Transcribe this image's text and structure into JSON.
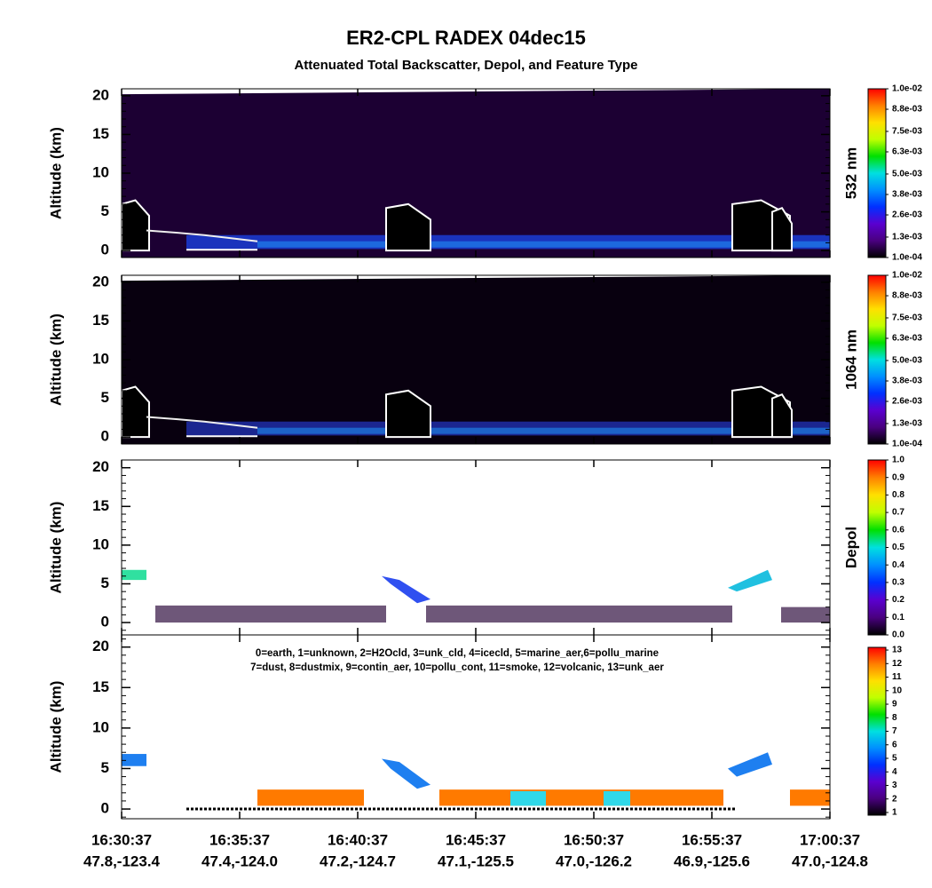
{
  "chart_data": [
    {
      "type": "heatmap",
      "title": "ER2-CPL RADEX 04dec15",
      "subtitle": "Attenuated Total Backscatter, Depol, and Feature Type",
      "y_label": "Altitude (km)",
      "ylim": [
        -0.9,
        20.9
      ],
      "yticks": [
        0,
        5,
        10,
        15,
        20
      ],
      "background": "#1c0033",
      "colorbar": {
        "label": "532 nm",
        "clim": [
          0.0001,
          0.01
        ],
        "ticks": [
          {
            "value": 0.0001,
            "label": "1.0e-04"
          },
          {
            "value": 0.0013,
            "label": "1.3e-03"
          },
          {
            "value": 0.0026,
            "label": "2.6e-03"
          },
          {
            "value": 0.0038,
            "label": "3.8e-03"
          },
          {
            "value": 0.005,
            "label": "5.0e-03"
          },
          {
            "value": 0.0063,
            "label": "6.3e-03"
          },
          {
            "value": 0.0075,
            "label": "7.5e-03"
          },
          {
            "value": 0.0088,
            "label": "8.8e-03"
          },
          {
            "value": 0.01,
            "label": "1.0e-02"
          }
        ],
        "colors": [
          "#000000",
          "#4a0080",
          "#5a00d0",
          "#0030ff",
          "#0090ff",
          "#00e0e0",
          "#00e000",
          "#c0ff00",
          "#ffe000",
          "#ff8000",
          "#ff0000"
        ]
      }
    },
    {
      "type": "heatmap",
      "y_label": "Altitude (km)",
      "ylim": [
        -0.9,
        20.9
      ],
      "yticks": [
        0,
        5,
        10,
        15,
        20
      ],
      "background": "#08000f",
      "colorbar": {
        "label": "1064 nm",
        "clim": [
          0.0001,
          0.01
        ],
        "ticks": [
          {
            "value": 0.0001,
            "label": "1.0e-04"
          },
          {
            "value": 0.0013,
            "label": "1.3e-03"
          },
          {
            "value": 0.0026,
            "label": "2.6e-03"
          },
          {
            "value": 0.0038,
            "label": "3.8e-03"
          },
          {
            "value": 0.005,
            "label": "5.0e-03"
          },
          {
            "value": 0.0063,
            "label": "6.3e-03"
          },
          {
            "value": 0.0075,
            "label": "7.5e-03"
          },
          {
            "value": 0.0088,
            "label": "8.8e-03"
          },
          {
            "value": 0.01,
            "label": "1.0e-02"
          }
        ],
        "colors": [
          "#000000",
          "#4a0080",
          "#5a00d0",
          "#0030ff",
          "#0090ff",
          "#00e0e0",
          "#00e000",
          "#c0ff00",
          "#ffe000",
          "#ff8000",
          "#ff0000"
        ]
      }
    },
    {
      "type": "heatmap",
      "y_label": "Altitude (km)",
      "ylim": [
        -1.6,
        21
      ],
      "yticks": [
        0,
        5,
        10,
        15,
        20
      ],
      "background": "#ffffff",
      "colorbar": {
        "label": "Depol",
        "clim": [
          0,
          1
        ],
        "ticks": [
          {
            "value": 0,
            "label": "0.0"
          },
          0.1,
          0.2,
          0.3,
          0.4,
          0.5,
          0.6,
          0.7,
          0.8,
          0.9,
          {
            "value": 1,
            "label": "1.0"
          }
        ],
        "colors": [
          "#000000",
          "#4a0080",
          "#5a00d0",
          "#0030ff",
          "#0090ff",
          "#00e0e0",
          "#00e000",
          "#c0ff00",
          "#ffe000",
          "#ff8000",
          "#ff0000"
        ]
      }
    },
    {
      "type": "heatmap",
      "y_label": "Altitude (km)",
      "ylim": [
        -1.2,
        21.5
      ],
      "yticks": [
        0,
        5,
        10,
        15,
        20
      ],
      "background": "#ffffff",
      "annotations": [
        "0=earth, 1=unknown, 2=H2Ocld, 3=unk_cld, 4=icecld, 5=marine_aer,6=pollu_marine",
        "7=dust, 8=dustmix, 9=contin_aer, 10=pollu_cont, 11=smoke, 12=volcanic, 13=unk_aer"
      ],
      "colorbar": {
        "clim": [
          0.8,
          13.2
        ],
        "ticks": [
          1,
          2,
          3,
          4,
          5,
          6,
          7,
          8,
          9,
          10,
          11,
          12,
          13
        ],
        "colors": [
          "#000000",
          "#4a0080",
          "#5a00d0",
          "#0030ff",
          "#0090ff",
          "#00e0e0",
          "#00e000",
          "#c0ff00",
          "#ffe000",
          "#ff8000",
          "#ff0000"
        ]
      },
      "categories": [
        "16:30:37",
        "16:35:37",
        "16:40:37",
        "16:45:37",
        "16:50:37",
        "16:55:37",
        "17:00:37"
      ],
      "locations": [
        "47.8,-123.4",
        "47.4,-124.0",
        "47.2,-124.7",
        "47.1,-125.5",
        "47.0,-126.2",
        "46.9,-125.6",
        "47.0,-124.8"
      ]
    }
  ]
}
